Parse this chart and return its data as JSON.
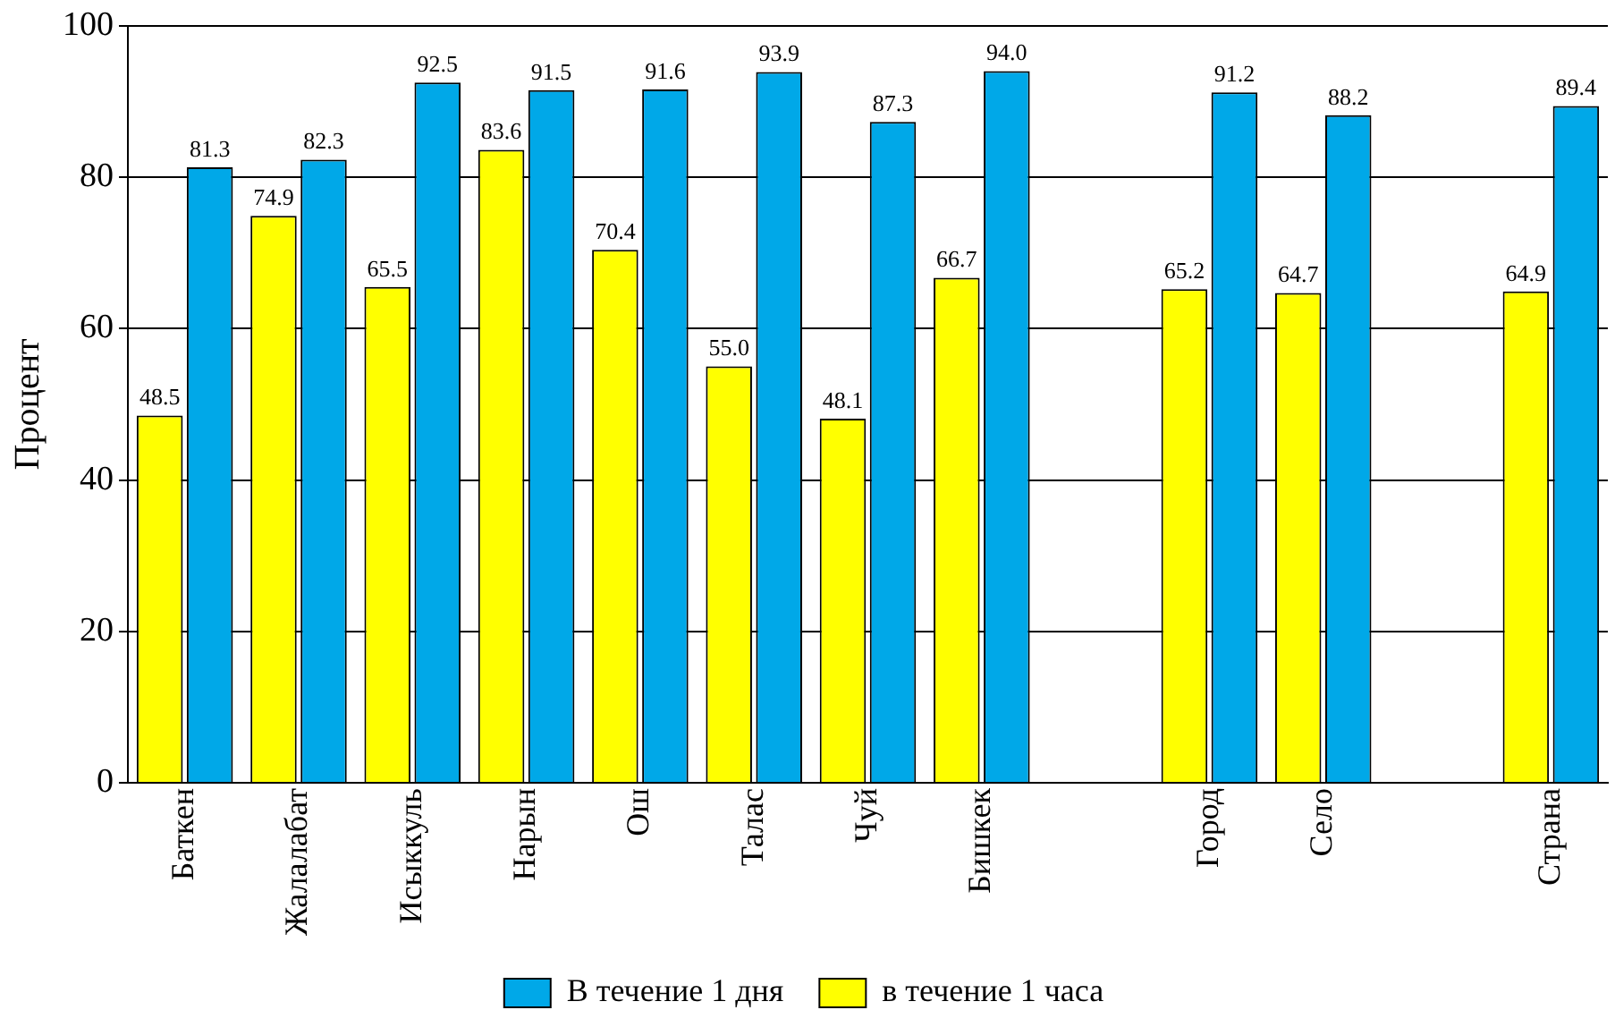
{
  "chart_data": {
    "type": "bar",
    "ylabel": "Процент",
    "categories": [
      "Баткен",
      "Жалалабат",
      "Исыккуль",
      "Нарын",
      "Ош",
      "Талас",
      "Чуй",
      "Бишкек",
      null,
      "Город",
      "Село",
      null,
      "Страна"
    ],
    "series": [
      {
        "name": "в течение 1 часа",
        "color": "#ffff00",
        "values": [
          48.5,
          74.9,
          65.5,
          83.6,
          70.4,
          55.0,
          48.1,
          66.7,
          null,
          65.2,
          64.7,
          null,
          64.9
        ],
        "value_labels": [
          "48.5",
          "74.9",
          "65.5",
          "83.6",
          "70.4",
          "55.0",
          "48.1",
          "66.7",
          null,
          "65.2",
          "64.7",
          null,
          "64.9"
        ]
      },
      {
        "name": "В течение 1 дня",
        "color": "#00a8e8",
        "values": [
          81.3,
          82.3,
          92.5,
          91.5,
          91.6,
          93.9,
          87.3,
          94.0,
          null,
          91.2,
          88.2,
          null,
          89.4
        ],
        "value_labels": [
          "81.3",
          "82.3",
          "92.5",
          "91.5",
          "91.6",
          "93.9",
          "87.3",
          "94.0",
          null,
          "91.2",
          "88.2",
          null,
          "89.4"
        ]
      }
    ],
    "ylim": [
      0,
      100
    ],
    "yticks": [
      0,
      20,
      40,
      60,
      80,
      100
    ],
    "grid": "y",
    "legend": "bottom"
  }
}
